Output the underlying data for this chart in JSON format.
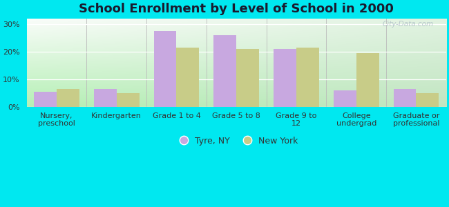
{
  "title": "School Enrollment by Level of School in 2000",
  "categories": [
    "Nursery,\npreschool",
    "Kindergarten",
    "Grade 1 to 4",
    "Grade 5 to 8",
    "Grade 9 to\n12",
    "College\nundergrad",
    "Graduate or\nprofessional"
  ],
  "tyre_ny": [
    5.5,
    6.5,
    27.5,
    26.0,
    21.0,
    6.0,
    6.5
  ],
  "new_york": [
    6.5,
    5.0,
    21.5,
    21.0,
    21.5,
    19.5,
    5.0
  ],
  "bar_color_tyre": "#c8a8e0",
  "bar_color_ny": "#c8cc88",
  "background_outer": "#00e8f0",
  "ylim": [
    0,
    32
  ],
  "yticks": [
    0,
    10,
    20,
    30
  ],
  "ytick_labels": [
    "0%",
    "10%",
    "20%",
    "30%"
  ],
  "legend_label_tyre": "Tyre, NY",
  "legend_label_ny": "New York",
  "title_fontsize": 13,
  "tick_fontsize": 8,
  "legend_fontsize": 9,
  "watermark": "City-Data.com"
}
